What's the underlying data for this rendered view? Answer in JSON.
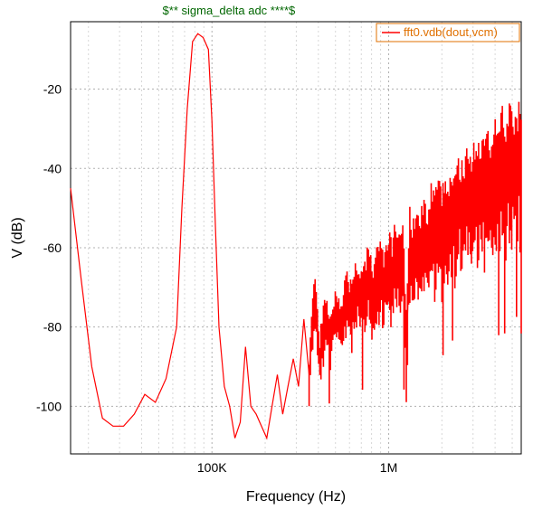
{
  "chart": {
    "type": "line",
    "title": "$** sigma_delta adc ****$",
    "title_color": "#006600",
    "title_fontsize": 13,
    "xlabel": "Frequency  (Hz)",
    "ylabel": "V (dB)",
    "label_fontsize": 16,
    "tick_fontsize": 14,
    "background_color": "#ffffff",
    "grid_color": "#b0b0b0",
    "grid_dash": "2,3",
    "line_color": "#ff0000",
    "line_width": 1.2,
    "xscale": "log",
    "xlim_log10": [
      4.2,
      6.75
    ],
    "ylim": [
      -112,
      -3
    ],
    "xtick_labels": [
      "100K",
      "1M"
    ],
    "xtick_log10": [
      5,
      6
    ],
    "ytick_labels": [
      "-20",
      "-40",
      "-60",
      "-80",
      "-100"
    ],
    "ytick_values": [
      -20,
      -40,
      -60,
      -80,
      -100
    ],
    "legend": {
      "text": "fft0.vdb(dout,vcm)",
      "border_color": "#e07000",
      "text_color": "#e07000",
      "line_color": "#ff0000"
    },
    "series": {
      "name": "fft0",
      "x_log10": [
        4.2,
        4.26,
        4.32,
        4.38,
        4.44,
        4.5,
        4.56,
        4.62,
        4.68,
        4.74,
        4.8,
        4.83,
        4.86,
        4.89,
        4.92,
        4.95,
        4.98,
        5.0,
        5.02,
        5.04,
        5.07,
        5.1,
        5.13,
        5.16,
        5.19,
        5.22,
        5.25,
        5.28,
        5.31,
        5.34,
        5.37,
        5.4,
        5.43,
        5.46,
        5.49,
        5.52,
        5.55,
        5.58,
        5.61,
        5.64,
        5.67,
        5.7,
        5.73,
        5.76,
        5.79,
        5.82,
        5.85,
        5.88,
        5.91,
        5.94,
        5.97,
        6.0,
        6.02,
        6.04,
        6.06,
        6.08,
        6.1,
        6.12,
        6.14,
        6.16,
        6.18,
        6.2,
        6.22,
        6.24,
        6.26,
        6.28,
        6.3,
        6.32,
        6.34,
        6.36,
        6.38,
        6.4,
        6.42,
        6.44,
        6.46,
        6.48,
        6.5,
        6.52,
        6.54,
        6.56,
        6.58,
        6.6,
        6.62,
        6.64,
        6.66,
        6.68,
        6.7,
        6.72,
        6.75
      ],
      "y_db": [
        -45,
        -68,
        -90,
        -103,
        -105,
        -105,
        -102,
        -97,
        -99,
        -93,
        -80,
        -50,
        -25,
        -8,
        -6,
        -7,
        -10,
        -28,
        -55,
        -80,
        -95,
        -100,
        -108,
        -104,
        -85,
        -100,
        -102,
        -105,
        -108,
        -100,
        -92,
        -102,
        -95,
        -88,
        -95,
        -78,
        -92,
        -70,
        -88,
        -78,
        -82,
        -76,
        -80,
        -73,
        -76,
        -70,
        -74,
        -68,
        -72,
        -66,
        -70,
        -64,
        -68,
        -62,
        -66,
        -61,
        -85,
        -60,
        -63,
        -58,
        -62,
        -56,
        -60,
        -55,
        -58,
        -53,
        -57,
        -52,
        -55,
        -50,
        -54,
        -48,
        -52,
        -46,
        -50,
        -45,
        -48,
        -43,
        -47,
        -42,
        -45,
        -40,
        -44,
        -38,
        -43,
        -37,
        -41,
        -36,
        -40
      ]
    },
    "noise": {
      "start_log10": 5.55,
      "end_log10": 6.75,
      "amplitude_start": 6,
      "amplitude_end": 16,
      "stripes": 180
    }
  }
}
